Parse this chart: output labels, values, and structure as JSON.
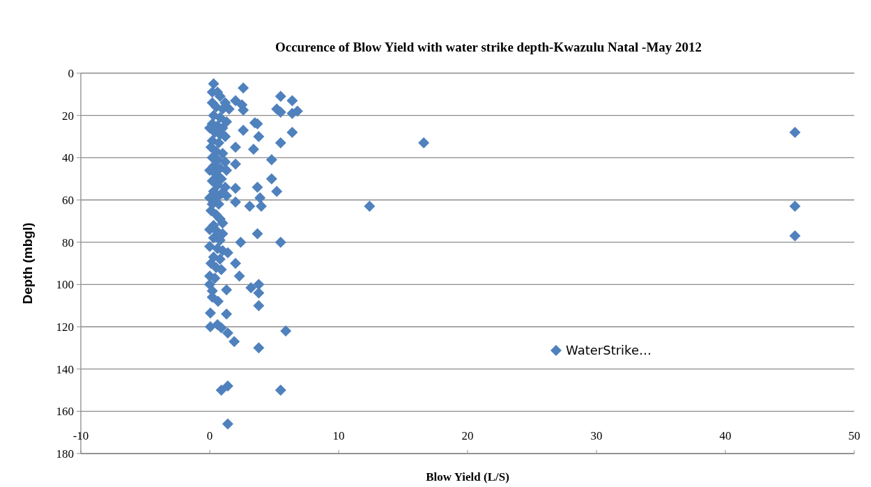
{
  "chart_data": {
    "type": "scatter",
    "title": "Occurence of Blow Yield with water strike depth-Kwazulu Natal -May 2012",
    "xlabel": "Blow Yield (L/S)",
    "ylabel": "Depth (mbgl)",
    "xlim": [
      -10,
      50
    ],
    "xticks": [
      -10,
      0,
      10,
      20,
      30,
      40,
      50
    ],
    "ylim": [
      180,
      0
    ],
    "yticks": [
      0,
      20,
      40,
      60,
      80,
      100,
      120,
      140,
      160,
      180
    ],
    "grid": "y",
    "legend": "right",
    "marker": "diamond",
    "series": [
      {
        "name": "WaterStrike…",
        "color": "#4f81bd",
        "x": [
          45.4,
          45.4,
          45.4,
          16.6,
          12.4,
          2.6,
          5.5,
          6.4,
          2.0,
          2.5,
          2.6,
          5.2,
          5.5,
          6.4,
          6.8,
          3.5,
          3.7,
          2.6,
          3.8,
          6.4,
          2.0,
          3.4,
          5.5,
          2.0,
          4.8,
          4.8,
          3.7,
          5.2,
          2.0,
          3.9,
          2.0,
          3.1,
          4.0,
          3.7,
          2.4,
          5.5,
          1.4,
          2.0,
          2.3,
          3.2,
          3.8,
          3.8,
          1.3,
          3.8,
          0.65,
          1.3,
          0.05,
          0.05,
          0.6,
          0.9,
          1.4,
          5.9,
          1.9,
          3.8,
          0.9,
          1.4,
          5.5,
          1.4,
          0.3,
          0.2,
          0.6,
          0.8,
          0.2,
          1.2,
          0.5,
          1.0,
          1.5,
          0.3,
          0.8,
          1.3,
          0.2,
          0.6,
          0,
          1.0,
          0.4,
          0.8,
          1.2,
          0.2,
          0.7,
          0.1,
          0.5,
          1.0,
          0.2,
          0.6,
          1.2,
          0.3,
          0.8,
          0,
          1.3,
          0.5,
          0.9,
          0.2,
          0.6,
          1.2,
          0.3,
          0.9,
          0,
          0.5,
          1.3,
          0.2,
          0.7,
          0.1,
          0.5,
          0.8,
          1.0,
          0.3,
          0,
          0.6,
          1.0,
          0.3,
          0.8,
          0,
          0.6,
          1.0,
          0.3,
          0.8,
          0.1,
          0.5,
          0.9,
          0,
          0.4,
          0,
          0.2,
          0.2
        ],
        "values": [
          28,
          63,
          77,
          33,
          63,
          7,
          11,
          13,
          13,
          15,
          17.5,
          17,
          18.5,
          19,
          18,
          23.5,
          24,
          27,
          30,
          28,
          35,
          36,
          33,
          43,
          41,
          50,
          54,
          56,
          54.5,
          59,
          61,
          63,
          63,
          76,
          80,
          80,
          85,
          90,
          96,
          101.5,
          100,
          104,
          102.5,
          110,
          108,
          114,
          113.5,
          120,
          119,
          120.5,
          123,
          122,
          127,
          130,
          150,
          148,
          150,
          166,
          5,
          9,
          9,
          11,
          14,
          14,
          16,
          17,
          17,
          20,
          21,
          23,
          24,
          25,
          26,
          26,
          28,
          29,
          30,
          32,
          33,
          35,
          37,
          38,
          40,
          41,
          42,
          44,
          45,
          46,
          46,
          48,
          50,
          51,
          53,
          54,
          56,
          57,
          59,
          59,
          58,
          62,
          62,
          65,
          67,
          69,
          71,
          72,
          74,
          75,
          76,
          78,
          79,
          82,
          83,
          84,
          87,
          88,
          90,
          92,
          93,
          96,
          97,
          100,
          103,
          106
        ]
      }
    ]
  }
}
